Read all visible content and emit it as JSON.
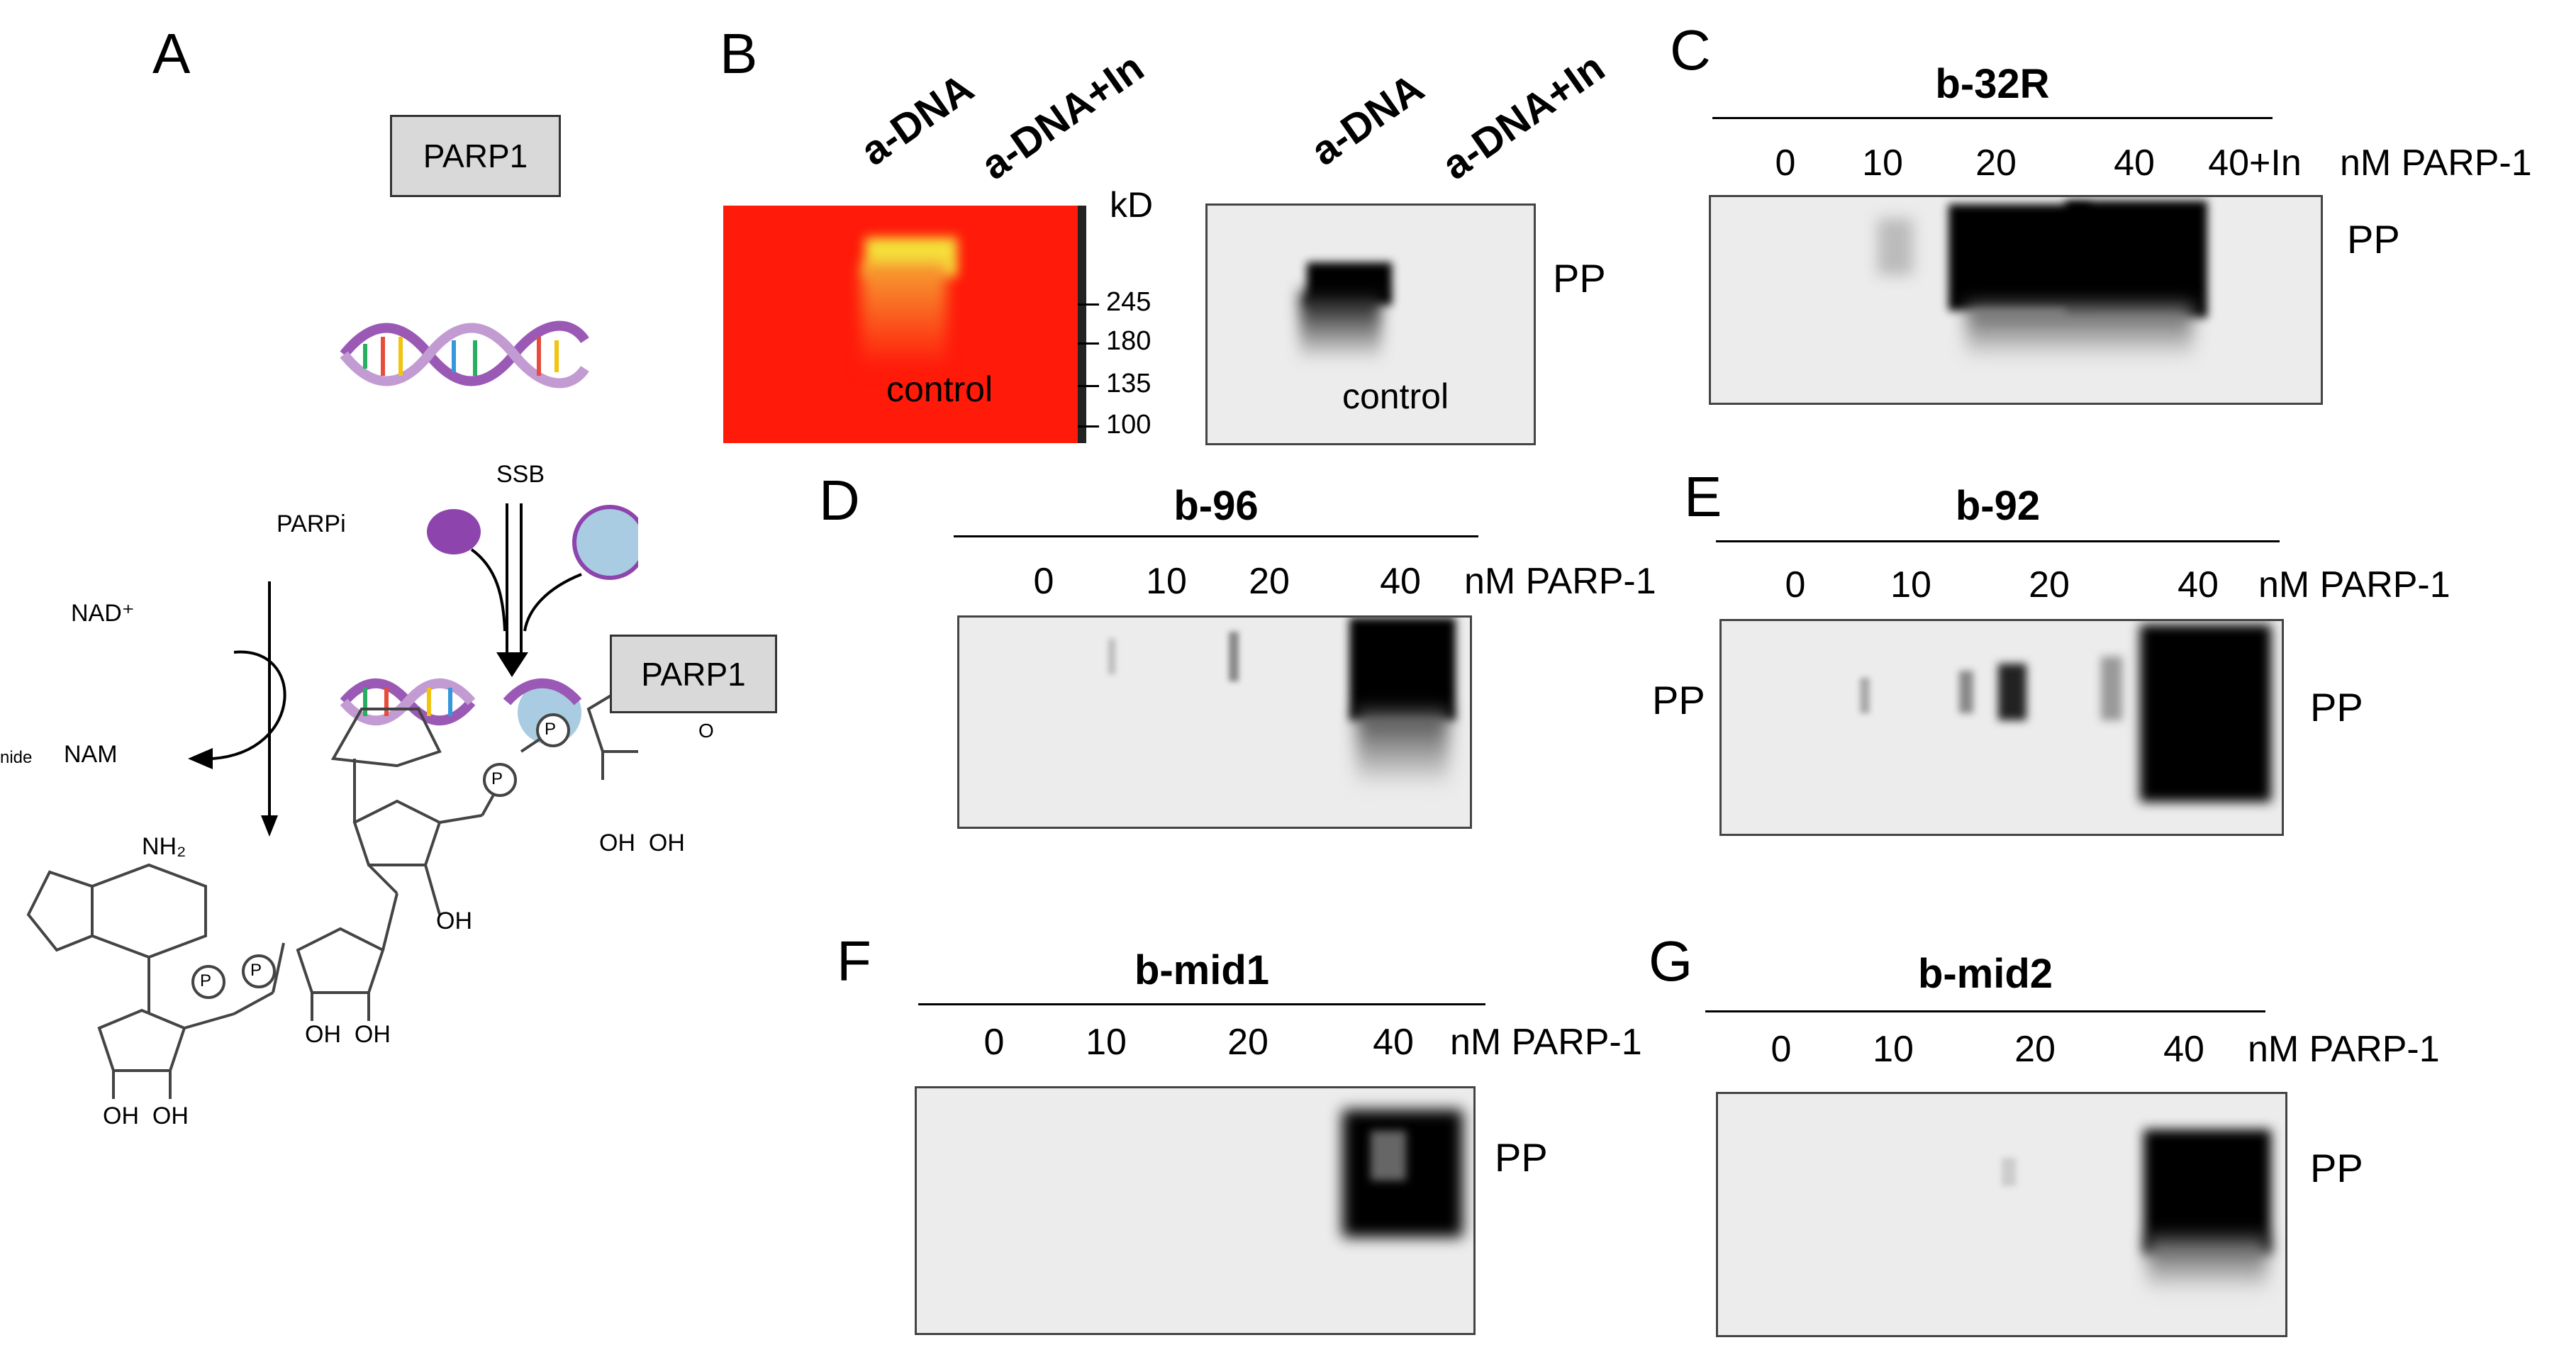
{
  "panels": {
    "A": {
      "letter": "A",
      "parp_top": "PARP1",
      "parp_mid": "PARP1",
      "ssb": "SSB",
      "parpi": "PARPi",
      "nad": "NAD⁺",
      "nam": "NAM",
      "nam_prefix": "nide",
      "nh2": "NH₂",
      "p": "P",
      "o": "O",
      "oh_oh_1": "OH  OH",
      "oh_oh_2": "OH  OH",
      "oh_oh_3": "OH  OH",
      "oh": "OH"
    },
    "B": {
      "letter": "B",
      "lane1": "a-DNA",
      "lane2": "a-DNA+In",
      "lane3": "a-DNA",
      "lane4": "a-DNA+In",
      "kd": "kD",
      "marker_245": "245",
      "marker_180": "180",
      "marker_135": "135",
      "marker_100": "100",
      "control_left": "control",
      "control_right": "control",
      "pp": "PP"
    },
    "C": {
      "letter": "C",
      "title": "b-32R",
      "lanes": [
        "0",
        "10",
        "20",
        "40",
        "40+In"
      ],
      "unit": "nM PARP-1",
      "pp": "PP"
    },
    "D": {
      "letter": "D",
      "title": "b-96",
      "lanes": [
        "0",
        "10",
        "20",
        "40"
      ],
      "unit": "nM PARP-1"
    },
    "E": {
      "letter": "E",
      "title": "b-92",
      "lanes": [
        "0",
        "10",
        "20",
        "40"
      ],
      "unit": "nM PARP-1",
      "pp_left": "PP",
      "pp_right": "PP"
    },
    "F": {
      "letter": "F",
      "title": "b-mid1",
      "lanes": [
        "0",
        "10",
        "20",
        "40"
      ],
      "unit": "nM PARP-1",
      "pp": "PP"
    },
    "G": {
      "letter": "G",
      "title": "b-mid2",
      "lanes": [
        "0",
        "10",
        "20",
        "40"
      ],
      "unit": "nM PARP-1",
      "pp": "PP"
    }
  },
  "colors": {
    "gel_red": "#ff1a0a",
    "band_yellow": "#f4e23a",
    "box_gray": "#d9d9d9",
    "blot_bg": "#ececec"
  }
}
